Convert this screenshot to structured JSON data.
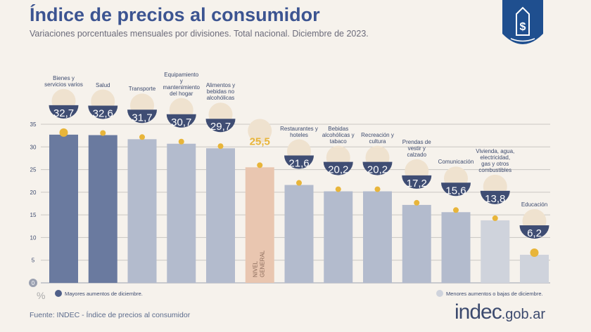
{
  "header": {
    "title": "Índice de precios al consumidor",
    "subtitle": "Variaciones porcentuales mensuales por divisiones. Total nacional. Diciembre de 2023."
  },
  "logo": {
    "icon": "price-tag-dollar-icon",
    "color": "#1f4f8f"
  },
  "chart_data": {
    "type": "bar",
    "categories": [
      "Bienes y servicios varios",
      "Salud",
      "Transporte",
      "Equipamiento y mantenimiento del hogar",
      "Alimentos y bebidas no alcohólicas",
      "NIVEL GENERAL",
      "Restaurantes y hoteles",
      "Bebidas alcohólicas y tabaco",
      "Recreación y cultura",
      "Prendas de vestir y calzado",
      "Comunicación",
      "Vivienda, agua, electricidad, gas y otros combustibles",
      "Educación"
    ],
    "values": [
      32.7,
      32.6,
      31.7,
      30.7,
      29.7,
      25.5,
      21.6,
      20.2,
      20.2,
      17.2,
      15.6,
      13.8,
      6.2
    ],
    "value_labels": [
      "32,7",
      "32,6",
      "31,7",
      "30,7",
      "29,7",
      "25,5",
      "21,6",
      "20,2",
      "20,2",
      "17,2",
      "15,6",
      "13,8",
      "6,2"
    ],
    "groups": [
      "high",
      "high",
      "mid",
      "mid",
      "mid",
      "general",
      "mid",
      "mid",
      "mid",
      "mid",
      "mid",
      "low",
      "low"
    ],
    "colors": {
      "high": "#6a7a9f",
      "mid": "#b3bbcd",
      "low": "#cfd3dc",
      "general": "#e9c6b0",
      "marker": "#e8b53a",
      "badge": "#3f4d73"
    },
    "ylabel": "%",
    "yticks": [
      0,
      5,
      10,
      15,
      20,
      25,
      30,
      35
    ],
    "ylim": [
      0,
      35
    ],
    "grid": true
  },
  "legend": {
    "high": "Mayores aumentos de diciembre.",
    "low": "Menores aumentos o bajas de diciembre."
  },
  "footer": {
    "source": "Fuente: INDEC - Índice de precios al consumidor",
    "site_main": "indec",
    "site_suffix": ".gob.ar"
  }
}
